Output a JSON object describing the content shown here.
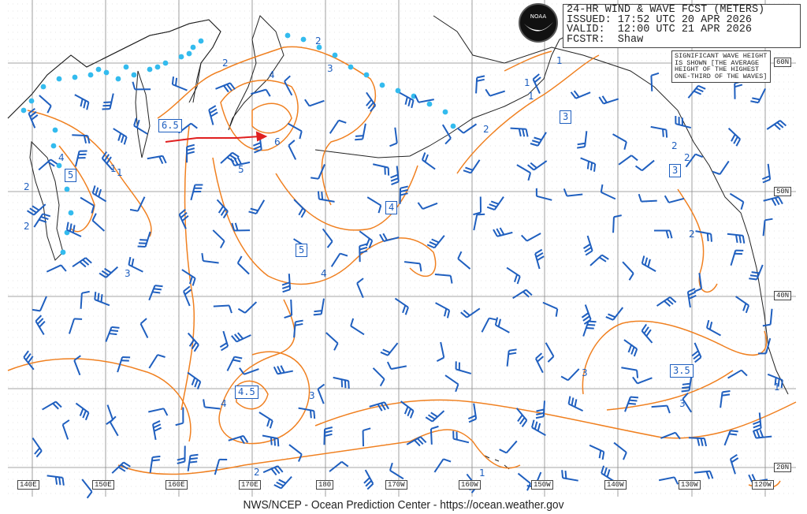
{
  "header": {
    "title": "24-HR WIND & WAVE FCST (METERS)",
    "issued": "ISSUED: 17:52 UTC 20 APR 2026",
    "valid": "VALID:  12:00 UTC 21 APR 2026",
    "forecaster": "FCSTR:  Shaw"
  },
  "logo_text": "NOAA",
  "legend_note": "SIGNIFICANT WAVE HEIGHT IS SHOWN [THE AVERAGE HEIGHT OF THE HIGHEST ONE-THIRD OF THE WAVES]",
  "footer": "NWS/NCEP - Ocean Prediction Center - https://ocean.weather.gov",
  "longitude_labels": [
    "140E",
    "150E",
    "160E",
    "170E",
    "180",
    "170W",
    "160W",
    "150W",
    "140W",
    "130W",
    "120W"
  ],
  "latitude_labels": [
    "60N",
    "50N",
    "40N",
    "20N"
  ],
  "wave_height_boxes": [
    "6.5",
    "5",
    "4",
    "5",
    "3",
    "3",
    "3.5",
    "4.5"
  ],
  "contour_labels": [
    "2",
    "1",
    "1",
    "1",
    "1",
    "2",
    "4",
    "3",
    "6",
    "5",
    "4",
    "1",
    "3",
    "2",
    "4",
    "3",
    "2",
    "3",
    "4",
    "2",
    "2",
    "2",
    "2",
    "1",
    "3",
    "2",
    "1"
  ],
  "colors": {
    "contour": "#f08020",
    "barb": "#1f5fbf",
    "ice_edge": "#33bbee",
    "arrow": "#e02020",
    "land": "#222222",
    "grid": "#888888"
  }
}
